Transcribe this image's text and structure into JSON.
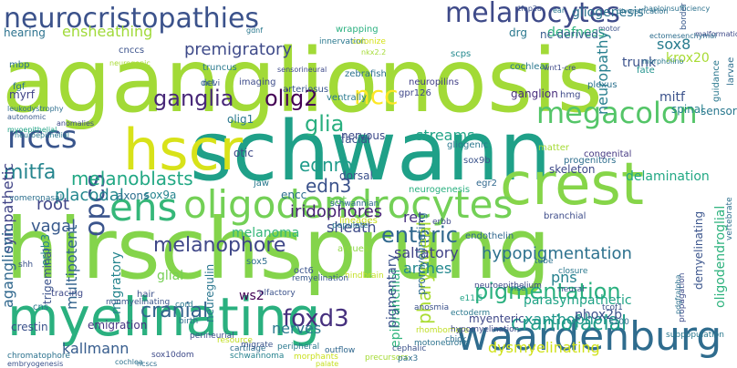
{
  "words": [
    {
      "text": "aganglionosis",
      "color": "#a2da37"
    },
    {
      "text": "hirschsprung",
      "color": "#84d44b"
    },
    {
      "text": "schwann",
      "color": "#1fa088"
    },
    {
      "text": "myelinating",
      "color": "#2ab07f"
    },
    {
      "text": "crest",
      "color": "#86d549"
    },
    {
      "text": "waardenburg",
      "color": "#2f6c8e"
    },
    {
      "text": "hscr",
      "color": "#d8e219"
    },
    {
      "text": "oligodendrocytes",
      "color": "#73d056"
    },
    {
      "text": "ens",
      "color": "#35b779"
    },
    {
      "text": "neurocristopathies",
      "color": "#3b528b"
    },
    {
      "text": "melanocytes",
      "color": "#3e4a89"
    },
    {
      "text": "ganglia",
      "color": "#482878"
    },
    {
      "text": "megacolon",
      "color": "#54c568"
    },
    {
      "text": "ncc",
      "color": "#fde725"
    },
    {
      "text": "nccs",
      "color": "#39558c"
    },
    {
      "text": "opcs",
      "color": "#3a548c"
    },
    {
      "text": "olig2",
      "color": "#440154"
    },
    {
      "text": "mitfa",
      "color": "#25858e"
    },
    {
      "text": "melanoblasts",
      "color": "#22a884"
    },
    {
      "text": "glia",
      "color": "#29af7f"
    },
    {
      "text": "melanophore",
      "color": "#3f4788"
    },
    {
      "text": "enteric",
      "color": "#31688e"
    },
    {
      "text": "pigmentation",
      "color": "#2ab07f"
    },
    {
      "text": "ednrb",
      "color": "#1e9b8a"
    },
    {
      "text": "edn3",
      "color": "#3b528b"
    },
    {
      "text": "cranial",
      "color": "#33638d"
    },
    {
      "text": "foxd3",
      "color": "#46307e"
    },
    {
      "text": "craniofacial",
      "color": "#1f9e89"
    },
    {
      "text": "dysmyelinating",
      "color": "#d0e11c"
    },
    {
      "text": "kallmann",
      "color": "#365c8d"
    },
    {
      "text": "hypopigmentation",
      "color": "#2d718e"
    },
    {
      "text": "pharyngeal",
      "color": "#aadc32"
    },
    {
      "text": "premigratory",
      "color": "#3e4a89"
    },
    {
      "text": "saltatory",
      "color": "#414287"
    },
    {
      "text": "xanthophore",
      "color": "#1f968b"
    },
    {
      "text": "nerves",
      "color": "#2a788e"
    },
    {
      "text": "iridophores",
      "color": "#482475"
    },
    {
      "text": "sheath",
      "color": "#3e4c8a"
    },
    {
      "text": "ret",
      "color": "#46337f"
    },
    {
      "text": "arches",
      "color": "#23888e"
    },
    {
      "text": "pns",
      "color": "#26818e"
    },
    {
      "text": "sox8",
      "color": "#287c8e"
    },
    {
      "text": "trunk",
      "color": "#3b528b"
    },
    {
      "text": "gliogenesis",
      "color": "#2c728e"
    },
    {
      "text": "deafness",
      "color": "#2db27d"
    },
    {
      "text": "drg",
      "color": "#2a788e"
    },
    {
      "text": "nc-derived",
      "color": "#365c8d"
    },
    {
      "text": "ensheathing",
      "color": "#a0da39"
    },
    {
      "text": "hearing",
      "color": "#2c728e"
    },
    {
      "text": "placodal",
      "color": "#24878e"
    },
    {
      "text": "vagal",
      "color": "#38598c"
    },
    {
      "text": "root",
      "color": "#404688"
    },
    {
      "text": "multipotent",
      "color": "#33638d"
    },
    {
      "text": "sympathetic",
      "color": "#414487"
    },
    {
      "text": "aganglionic",
      "color": "#31688e"
    },
    {
      "text": "crestin",
      "color": "#3b528b"
    },
    {
      "text": "emigration",
      "color": "#453581"
    },
    {
      "text": "migratory",
      "color": "#25858e"
    },
    {
      "text": "glial",
      "color": "#75d054"
    },
    {
      "text": "neuregulin",
      "color": "#2a768e"
    },
    {
      "text": "ws2",
      "color": "#440154"
    },
    {
      "text": "myenteric",
      "color": "#3f4889"
    },
    {
      "text": "phox2b",
      "color": "#3b518b"
    },
    {
      "text": "parasympathetic",
      "color": "#20a386"
    },
    {
      "text": "streams",
      "color": "#20a386"
    },
    {
      "text": "skeleton",
      "color": "#3e4989"
    },
    {
      "text": "delamination",
      "color": "#22a884"
    },
    {
      "text": "sensory",
      "color": "#2a788e"
    },
    {
      "text": "spinal",
      "color": "#26828e"
    },
    {
      "text": "oligodendroglial",
      "color": "#2db27d"
    },
    {
      "text": "demyelinating",
      "color": "#3a548c"
    },
    {
      "text": "mitf",
      "color": "#3b528b"
    },
    {
      "text": "krox20",
      "color": "#a8db34"
    },
    {
      "text": "neuropathy",
      "color": "#277f8e"
    },
    {
      "text": "ganglion",
      "color": "#472d7b"
    },
    {
      "text": "promyelinating",
      "color": "#2f6c8e"
    },
    {
      "text": "epibranchial",
      "color": "#2fb47c"
    },
    {
      "text": "pigmentary",
      "color": "#3b528b"
    },
    {
      "text": "olig1",
      "color": "#2a788e"
    },
    {
      "text": "otic",
      "color": "#3e4a89"
    },
    {
      "text": "facial",
      "color": "#3a548c"
    },
    {
      "text": "nervous",
      "color": "#3e4c8a"
    },
    {
      "text": "axons",
      "color": "#2d708e"
    },
    {
      "text": "sox9a",
      "color": "#25848e"
    },
    {
      "text": "erbb3",
      "color": "#26828e"
    },
    {
      "text": "trigeminal",
      "color": "#3b528b"
    },
    {
      "text": "encc",
      "color": "#2e6f8e"
    },
    {
      "text": "gut",
      "color": "#6ccd5a"
    },
    {
      "text": "dorsal",
      "color": "#3b518b"
    },
    {
      "text": "melanoma",
      "color": "#35b779"
    },
    {
      "text": "jaw",
      "color": "#2a788e"
    },
    {
      "text": "myrf",
      "color": "#404387"
    },
    {
      "text": "mbp",
      "color": "#2c718e"
    },
    {
      "text": "fgf",
      "color": "#2c728e"
    },
    {
      "text": "truncus",
      "color": "#29798e"
    },
    {
      "text": "dct",
      "color": "#2e6e8e"
    },
    {
      "text": "nevi",
      "color": "#3a538b"
    },
    {
      "text": "imaging",
      "color": "#3e4c8a"
    },
    {
      "text": "arteriosus",
      "color": "#39568c"
    },
    {
      "text": "wrapping",
      "color": "#2ab07f"
    },
    {
      "text": "innervation",
      "color": "#2a788e"
    },
    {
      "text": "colonize",
      "color": "#d5e21a"
    },
    {
      "text": "neuropilins",
      "color": "#424086"
    },
    {
      "text": "scps",
      "color": "#23898e"
    },
    {
      "text": "cochlear",
      "color": "#2a778e"
    },
    {
      "text": "fate",
      "color": "#20928c"
    },
    {
      "text": "plexus",
      "color": "#2c718e"
    },
    {
      "text": "hmg",
      "color": "#3e4a89"
    },
    {
      "text": "cnccs",
      "color": "#3b528b"
    },
    {
      "text": "leukodystrophy",
      "color": "#2e6e8e"
    },
    {
      "text": "autonomic",
      "color": "#38598c"
    },
    {
      "text": "anomalies",
      "color": "#3e4989"
    },
    {
      "text": "myoepithelial",
      "color": "#20a386"
    },
    {
      "text": "neuroepithelial",
      "color": "#2a768e"
    },
    {
      "text": "zebrafish",
      "color": "#2c718e"
    },
    {
      "text": "ventrally",
      "color": "#29798e"
    },
    {
      "text": "gpr126",
      "color": "#3f4889"
    },
    {
      "text": "neurogenesis",
      "color": "#2ab07f"
    },
    {
      "text": "gliogenic",
      "color": "#2a788e"
    },
    {
      "text": "sox9b",
      "color": "#3a538b"
    },
    {
      "text": "egr2",
      "color": "#31688e"
    },
    {
      "text": "matter",
      "color": "#a5db36"
    },
    {
      "text": "progenitors",
      "color": "#2e6e8e"
    },
    {
      "text": "congenital",
      "color": "#453882"
    },
    {
      "text": "erbb",
      "color": "#3e4a89"
    },
    {
      "text": "endothelin",
      "color": "#31688e"
    },
    {
      "text": "branchial",
      "color": "#3e4c8a"
    },
    {
      "text": "hindbrain",
      "color": "#c2df23"
    },
    {
      "text": "argues",
      "color": "#8fd744"
    },
    {
      "text": "lineages",
      "color": "#c8e020"
    },
    {
      "text": "schwannian",
      "color": "#31688e"
    },
    {
      "text": "populate",
      "color": "#2a778e"
    },
    {
      "text": "oct6",
      "color": "#3a548c"
    },
    {
      "text": "sox5",
      "color": "#2e6e8e"
    },
    {
      "text": "remyelination",
      "color": "#38598c"
    },
    {
      "text": "olfactory",
      "color": "#3b528b"
    },
    {
      "text": "vomeronasal",
      "color": "#2d708e"
    },
    {
      "text": "shh",
      "color": "#3b528b"
    },
    {
      "text": "cns",
      "color": "#2a788e"
    },
    {
      "text": "tracing",
      "color": "#3e4a89"
    },
    {
      "text": "nonmyelinating",
      "color": "#3a548c"
    },
    {
      "text": "hair",
      "color": "#3b518b"
    },
    {
      "text": "cord",
      "color": "#29798e"
    },
    {
      "text": "birth",
      "color": "#2e6e8e"
    },
    {
      "text": "perineurial",
      "color": "#3e4c8a"
    },
    {
      "text": "cartilage",
      "color": "#2e6e8e"
    },
    {
      "text": "resource",
      "color": "#c2df23"
    },
    {
      "text": "migrate",
      "color": "#3a538b"
    },
    {
      "text": "peripheral",
      "color": "#2a788e"
    },
    {
      "text": "morphants",
      "color": "#cae11f"
    },
    {
      "text": "outflow",
      "color": "#31688e"
    },
    {
      "text": "schwannoma",
      "color": "#26828e"
    },
    {
      "text": "sox10dom",
      "color": "#3e4a89"
    },
    {
      "text": "cochlea",
      "color": "#2d718e"
    },
    {
      "text": "chromatophore",
      "color": "#2c728e"
    },
    {
      "text": "embryogenesis",
      "color": "#3b528b"
    },
    {
      "text": "ncscs",
      "color": "#2e6e8e"
    },
    {
      "text": "palate",
      "color": "#c5e021"
    },
    {
      "text": "precursors",
      "color": "#a5db36"
    },
    {
      "text": "pax3",
      "color": "#2e6e8e"
    },
    {
      "text": "cephalic",
      "color": "#3b528b"
    },
    {
      "text": "motoneurons",
      "color": "#2c728e"
    },
    {
      "text": "rhombomere",
      "color": "#c0df25"
    },
    {
      "text": "chick",
      "color": "#2d708e"
    },
    {
      "text": "hypomyelination",
      "color": "#3e4a89"
    },
    {
      "text": "ectoderm",
      "color": "#2a788e"
    },
    {
      "text": "anosmia",
      "color": "#3b528b"
    },
    {
      "text": "e11.5",
      "color": "#20a386"
    },
    {
      "text": "neuroepithelium",
      "color": "#3e4989"
    },
    {
      "text": "rise",
      "color": "#31688e"
    },
    {
      "text": "tube",
      "color": "#2c728e"
    },
    {
      "text": "closure",
      "color": "#2a788e"
    },
    {
      "text": "neural",
      "color": "#3b528b"
    },
    {
      "text": "s100",
      "color": "#2e6e8e"
    },
    {
      "text": "tcof1",
      "color": "#3b528b"
    },
    {
      "text": "subpopulation",
      "color": "#2a788e"
    },
    {
      "text": "propagation",
      "color": "#3e4c8a"
    },
    {
      "text": "pdgfralpha",
      "color": "#2c718e"
    },
    {
      "text": "vertebrate",
      "color": "#2d708e"
    },
    {
      "text": "larvae",
      "color": "#2e6e8e"
    },
    {
      "text": "guidance",
      "color": "#2a788e"
    },
    {
      "text": "border",
      "color": "#38598c"
    },
    {
      "text": "malformations",
      "color": "#3e4a89"
    },
    {
      "text": "diversification",
      "color": "#2c718e"
    },
    {
      "text": "ear",
      "color": "#2a788e"
    },
    {
      "text": "haploinsufficiency",
      "color": "#2c728e"
    },
    {
      "text": "tfap2a",
      "color": "#3b528b"
    },
    {
      "text": "motor",
      "color": "#3b528b"
    },
    {
      "text": "ectomesenchymal",
      "color": "#2e6e8e"
    },
    {
      "text": "morpholino",
      "color": "#2a788e"
    },
    {
      "text": "wnt1-cre",
      "color": "#3e4a89"
    },
    {
      "text": "gdnf",
      "color": "#2a788e"
    },
    {
      "text": "neurogenic",
      "color": "#a8db34"
    },
    {
      "text": "sensorineural",
      "color": "#3e4989"
    },
    {
      "text": "nkx2.2",
      "color": "#a5db36"
    },
    {
      "text": "mrp1",
      "color": "#a0da39"
    },
    {
      "text": "head",
      "color": "#2e6e8e"
    },
    {
      "text": "proper",
      "color": "#2a788e"
    },
    {
      "text": "neuropilin",
      "color": "#2c718e"
    }
  ]
}
